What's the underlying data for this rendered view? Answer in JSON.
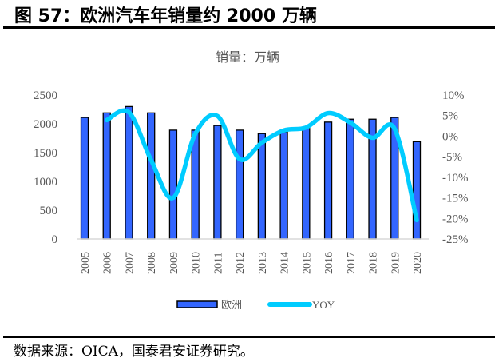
{
  "header": {
    "title": "图 57：欧洲汽车年销量约 2000 万辆"
  },
  "footer": {
    "source": "数据来源：OICA，国泰君安证券研究。"
  },
  "chart_data": {
    "type": "bar+line",
    "subtitle": "销量：万辆",
    "categories": [
      "2005",
      "2006",
      "2007",
      "2008",
      "2009",
      "2010",
      "2011",
      "2012",
      "2013",
      "2014",
      "2015",
      "2016",
      "2017",
      "2018",
      "2019",
      "2020"
    ],
    "series": [
      {
        "name": "欧洲",
        "type": "bar",
        "axis": "left",
        "color": "#3366ff",
        "values": [
          2110,
          2190,
          2300,
          2190,
          1890,
          1890,
          1970,
          1890,
          1830,
          1860,
          1920,
          2030,
          2080,
          2080,
          2110,
          1690
        ]
      },
      {
        "name": "YOY",
        "type": "line",
        "axis": "right",
        "color": "#00ccff",
        "values": [
          null,
          3.9,
          5.8,
          -5.8,
          -15.0,
          0.6,
          4.9,
          -5.6,
          -1.6,
          1.4,
          2.1,
          5.6,
          3.3,
          -0.4,
          1.8,
          -20.4
        ]
      }
    ],
    "left_axis": {
      "ylim": [
        0,
        2500
      ],
      "ticks": [
        "0",
        "500",
        "1000",
        "1500",
        "2000",
        "2500"
      ]
    },
    "right_axis": {
      "ylim": [
        -25,
        10
      ],
      "ticks": [
        "-25%",
        "-20%",
        "-15%",
        "-10%",
        "-5%",
        "0%",
        "5%",
        "10%"
      ]
    },
    "grid": false,
    "legend": "bottom"
  }
}
